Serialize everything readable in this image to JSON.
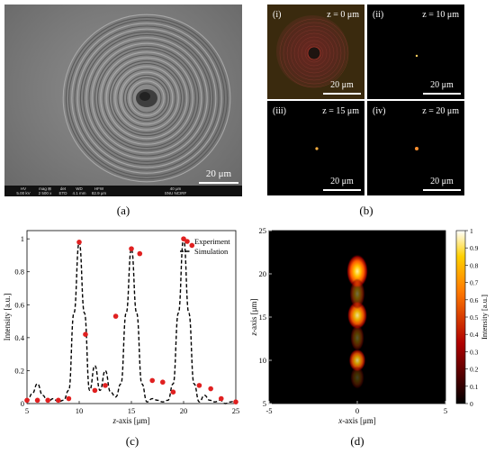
{
  "panel_a": {
    "label": "(a)",
    "scale_label": "20 μm",
    "info_bar": {
      "hv_head": "HV",
      "hv_val": "5.00 kV",
      "mag_head": "mag ⊞",
      "mag_val": "2 500 x",
      "det_head": "det",
      "det_val": "ETD",
      "wd_head": "WD",
      "wd_val": "4.1 mm",
      "hfw_head": "HFW",
      "hfw_val": "82.9 μm",
      "bar_text": "40 μm",
      "org": "SNU NCIRF"
    }
  },
  "panel_b": {
    "label": "(b)",
    "tiles": [
      {
        "roman": "(i)",
        "z": "z = 0 μm",
        "scale": "20 μm"
      },
      {
        "roman": "(ii)",
        "z": "z = 10 μm",
        "scale": "20 μm"
      },
      {
        "roman": "(iii)",
        "z": "z = 15 μm",
        "scale": "20 μm"
      },
      {
        "roman": "(iv)",
        "z": "z = 20 μm",
        "scale": "20 μm"
      }
    ]
  },
  "panel_c": {
    "label": "(c)",
    "ylabel": "Intensity [a.u.]",
    "xlabel_var": "z",
    "xlabel_rest": "-axis [μm]",
    "legend_experiment": "Experiment",
    "legend_simulation": "Simulation",
    "colors": {
      "experiment": "#e02020",
      "simulation": "#000000"
    }
  },
  "panel_d": {
    "label": "(d)",
    "ylabel_var": "z",
    "ylabel_rest": "-axis [μm]",
    "xlabel_var": "x",
    "xlabel_rest": "-axis [μm]",
    "colorbar_label": "Intensity [a.u.]"
  },
  "chart_data": [
    {
      "type": "scatter",
      "xlim": [
        5,
        25
      ],
      "ylim": [
        0,
        1.05
      ],
      "x_ticks": [
        5,
        10,
        15,
        20,
        25
      ],
      "y_ticks": [
        0,
        0.2,
        0.4,
        0.6,
        0.8,
        1
      ],
      "legend": "top-right",
      "grid": false,
      "series": [
        {
          "name": "Experiment",
          "marker": "circle",
          "x": [
            5,
            6,
            7,
            8,
            9,
            10,
            10.6,
            11.5,
            12.5,
            13.5,
            15,
            15.8,
            17,
            18,
            19,
            20,
            20.8,
            21.5,
            22.6,
            23.6,
            25
          ],
          "y": [
            0.02,
            0.02,
            0.02,
            0.02,
            0.03,
            0.98,
            0.42,
            0.08,
            0.11,
            0.53,
            0.94,
            0.91,
            0.14,
            0.13,
            0.07,
            1.0,
            0.96,
            0.11,
            0.09,
            0.03,
            0.01
          ]
        },
        {
          "name": "Simulation",
          "style": "dashed",
          "x": [
            5,
            5.5,
            6,
            6.5,
            7,
            7.5,
            8,
            8.5,
            9,
            9.5,
            10,
            10.5,
            11,
            11.5,
            12,
            12.5,
            13,
            13.5,
            14,
            14.5,
            15,
            15.5,
            16,
            16.5,
            17,
            17.5,
            18,
            18.5,
            19,
            19.5,
            20,
            20.5,
            21,
            21.5,
            22,
            22.5,
            23,
            23.5,
            24,
            24.5,
            25
          ],
          "y": [
            0.01,
            0.06,
            0.12,
            0.05,
            0.01,
            0.03,
            0.01,
            0.02,
            0.08,
            0.55,
            0.98,
            0.55,
            0.08,
            0.23,
            0.08,
            0.2,
            0.07,
            0.04,
            0.12,
            0.55,
            0.94,
            0.55,
            0.12,
            0.01,
            0.03,
            0.02,
            0.01,
            0.02,
            0.12,
            0.55,
            1.0,
            0.55,
            0.12,
            0.01,
            0.05,
            0.02,
            0.01,
            0.02,
            0.0,
            0.01,
            0.02
          ]
        }
      ]
    },
    {
      "type": "heatmap",
      "xlim": [
        -5,
        5
      ],
      "ylim": [
        5,
        25
      ],
      "x_ticks": [
        -5,
        0,
        5
      ],
      "y_ticks": [
        5,
        10,
        15,
        20,
        25
      ],
      "colorbar": {
        "range": [
          0,
          1
        ],
        "ticks": [
          0,
          0.1,
          0.2,
          0.3,
          0.4,
          0.5,
          0.6,
          0.7,
          0.8,
          0.9,
          1
        ]
      },
      "hotspots": [
        {
          "x": 0,
          "z": 20.3,
          "intensity": 1.0,
          "sx": 0.28,
          "sz": 0.9
        },
        {
          "x": 0,
          "z": 15.2,
          "intensity": 0.92,
          "sx": 0.26,
          "sz": 0.75
        },
        {
          "x": 0,
          "z": 10.0,
          "intensity": 0.82,
          "sx": 0.22,
          "sz": 0.6
        },
        {
          "x": 0,
          "z": 17.7,
          "intensity": 0.45,
          "sx": 0.2,
          "sz": 0.8
        },
        {
          "x": 0,
          "z": 12.6,
          "intensity": 0.35,
          "sx": 0.18,
          "sz": 0.7
        },
        {
          "x": 0,
          "z": 8.0,
          "intensity": 0.25,
          "sx": 0.18,
          "sz": 0.6
        }
      ]
    }
  ]
}
